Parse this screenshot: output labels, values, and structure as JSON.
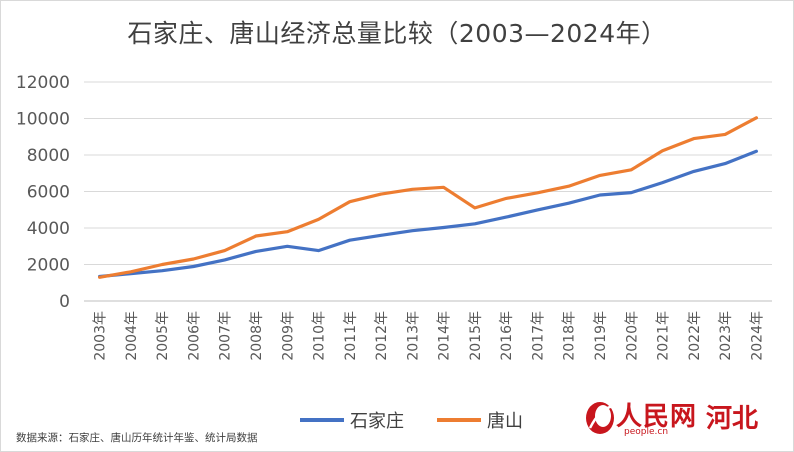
{
  "chart_data": {
    "type": "line",
    "title": "石家庄、唐山经济总量比较（2003—2024年）",
    "categories": [
      "2003年",
      "2004年",
      "2005年",
      "2006年",
      "2007年",
      "2008年",
      "2009年",
      "2010年",
      "2011年",
      "2012年",
      "2013年",
      "2014年",
      "2015年",
      "2016年",
      "2017年",
      "2018年",
      "2019年",
      "2020年",
      "2021年",
      "2022年",
      "2023年",
      "2024年"
    ],
    "series": [
      {
        "name": "石家庄",
        "color": "#4472c4",
        "values": [
          1340,
          1500,
          1660,
          1890,
          2250,
          2720,
          3000,
          2760,
          3330,
          3600,
          3850,
          4030,
          4230,
          4600,
          4990,
          5360,
          5810,
          5940,
          6490,
          7100,
          7530,
          8200
        ]
      },
      {
        "name": "唐山",
        "color": "#ed7d31",
        "values": [
          1300,
          1600,
          2000,
          2300,
          2760,
          3560,
          3800,
          4470,
          5440,
          5860,
          6120,
          6230,
          5100,
          5620,
          5930,
          6290,
          6880,
          7190,
          8230,
          8900,
          9130,
          10040
        ]
      }
    ],
    "ylim": [
      0,
      12000
    ],
    "yticks": [
      "0",
      "2000",
      "4000",
      "6000",
      "8000",
      "10000",
      "12000"
    ],
    "grid": true,
    "legend_position": "bottom"
  },
  "source_note": "数据来源：石家庄、唐山历年统计年鉴、统计局数据",
  "logo": {
    "brand": "人民网",
    "url": "people.cn",
    "region": "河北"
  }
}
